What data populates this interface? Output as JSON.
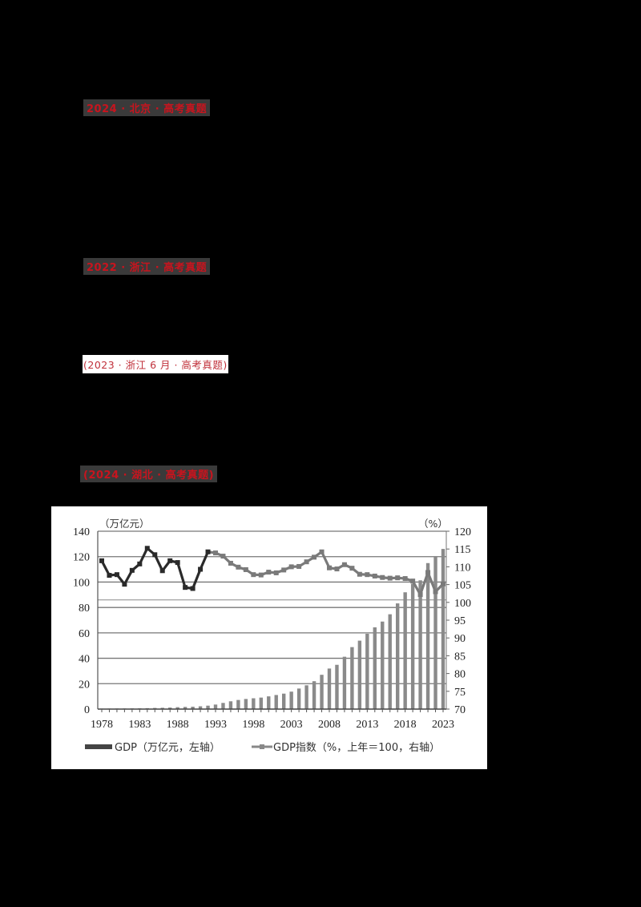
{
  "headings": [
    {
      "text": "2024 · 北京 · 高考真题"
    },
    {
      "text": "2022 · 浙江 · 高考真题"
    },
    {
      "text": "(2023 · 浙江 6 月 · 高考真题)"
    },
    {
      "text": "(2024 · 湖北 · 高考真题)"
    }
  ],
  "chart": {
    "left_unit": "（万亿元）",
    "right_unit": "（%）",
    "legend_gdp": "GDP（万亿元，左轴）",
    "legend_index": "GDP指数（%，上年＝100，右轴）"
  },
  "chart_data": {
    "type": "bar+line",
    "title": "",
    "xlabel": "",
    "ylabel_left": "万亿元",
    "ylabel_right": "%",
    "ylim_left": [
      0,
      140
    ],
    "ylim_right": [
      70,
      120
    ],
    "left_ticks": [
      0,
      20,
      40,
      60,
      80,
      100,
      120,
      140
    ],
    "right_ticks": [
      70,
      75,
      80,
      85,
      90,
      95,
      100,
      105,
      110,
      115,
      120
    ],
    "x_tick_labels": [
      "1978",
      "1983",
      "1988",
      "1993",
      "1998",
      "2003",
      "2008",
      "2013",
      "2018",
      "2023"
    ],
    "grid": true,
    "legend_position": "bottom",
    "x": [
      1978,
      1979,
      1980,
      1981,
      1982,
      1983,
      1984,
      1985,
      1986,
      1987,
      1988,
      1989,
      1990,
      1991,
      1992,
      1993,
      1994,
      1995,
      1996,
      1997,
      1998,
      1999,
      2000,
      2001,
      2002,
      2003,
      2004,
      2005,
      2006,
      2007,
      2008,
      2009,
      2010,
      2011,
      2012,
      2013,
      2014,
      2015,
      2016,
      2017,
      2018,
      2019,
      2020,
      2021,
      2022,
      2023
    ],
    "series": [
      {
        "name": "GDP（万亿元，左轴）",
        "type": "bar",
        "axis": "left",
        "values": [
          0.37,
          0.41,
          0.46,
          0.49,
          0.54,
          0.6,
          0.73,
          0.91,
          1.04,
          1.22,
          1.51,
          1.72,
          1.89,
          2.2,
          2.7,
          3.57,
          4.86,
          6.13,
          7.18,
          7.97,
          8.52,
          9.06,
          10.03,
          11.09,
          12.17,
          13.74,
          16.18,
          18.73,
          21.94,
          27.0,
          31.92,
          34.85,
          41.21,
          48.79,
          53.86,
          59.3,
          64.36,
          68.89,
          74.64,
          83.2,
          91.93,
          98.65,
          101.36,
          114.92,
          120.47,
          126.06
        ]
      },
      {
        "name": "GDP指数（%，上年＝100，右轴）",
        "type": "line",
        "axis": "right",
        "values": [
          111.7,
          107.6,
          107.8,
          105.1,
          109.0,
          110.8,
          115.2,
          113.4,
          108.9,
          111.7,
          111.2,
          104.2,
          103.9,
          109.3,
          114.2,
          113.9,
          113.0,
          111.0,
          109.9,
          109.2,
          107.8,
          107.7,
          108.5,
          108.3,
          109.1,
          110.0,
          110.1,
          111.4,
          112.7,
          114.2,
          109.7,
          109.4,
          110.6,
          109.6,
          107.9,
          107.8,
          107.4,
          107.0,
          106.8,
          106.9,
          106.7,
          106.0,
          102.2,
          108.4,
          103.0,
          105.2
        ]
      }
    ]
  }
}
